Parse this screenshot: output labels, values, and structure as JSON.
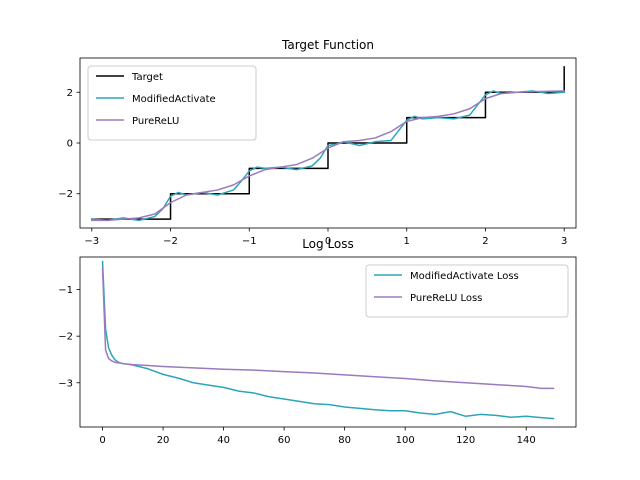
{
  "chart_data": [
    {
      "type": "line",
      "title": "Target Function",
      "xlabel": "",
      "ylabel": "",
      "xlim": [
        -3.15,
        3.15
      ],
      "ylim": [
        -3.35,
        3.35
      ],
      "xticks": [
        -3,
        -2,
        -1,
        0,
        1,
        2,
        3
      ],
      "yticks": [
        -2,
        0,
        2
      ],
      "grid": false,
      "legend": "top-left",
      "series": [
        {
          "name": "Target",
          "color": "#000000",
          "x": [
            -3,
            -2,
            -2,
            -1,
            -1,
            0,
            0,
            1,
            1,
            2,
            2,
            3,
            3
          ],
          "y": [
            -3,
            -3,
            -2,
            -2,
            -1,
            -1,
            0,
            0,
            1,
            1,
            2,
            2,
            3
          ]
        },
        {
          "name": "ModifiedActivate",
          "color": "#2ca5b8",
          "x": [
            -3.0,
            -2.8,
            -2.6,
            -2.4,
            -2.2,
            -2.1,
            -2.0,
            -1.9,
            -1.8,
            -1.6,
            -1.4,
            -1.2,
            -1.1,
            -1.0,
            -0.9,
            -0.8,
            -0.6,
            -0.4,
            -0.2,
            -0.1,
            0.0,
            0.1,
            0.2,
            0.4,
            0.6,
            0.8,
            0.9,
            1.0,
            1.1,
            1.2,
            1.4,
            1.6,
            1.8,
            1.9,
            2.0,
            2.1,
            2.2,
            2.4,
            2.6,
            2.8,
            3.0
          ],
          "y": [
            -3.0,
            -3.05,
            -2.95,
            -3.05,
            -2.9,
            -2.6,
            -2.1,
            -1.95,
            -2.05,
            -1.95,
            -2.05,
            -1.85,
            -1.5,
            -1.1,
            -0.95,
            -1.0,
            -0.95,
            -1.05,
            -0.9,
            -0.6,
            -0.1,
            -0.05,
            0.05,
            -0.1,
            0.05,
            0.1,
            0.5,
            0.9,
            1.05,
            0.95,
            1.0,
            0.95,
            1.1,
            1.5,
            1.9,
            2.05,
            1.95,
            2.0,
            2.05,
            1.95,
            2.0
          ]
        },
        {
          "name": "PureReLU",
          "color": "#9a7bbf",
          "x": [
            -3.0,
            -2.8,
            -2.6,
            -2.4,
            -2.2,
            -2.0,
            -1.8,
            -1.6,
            -1.4,
            -1.2,
            -1.0,
            -0.8,
            -0.6,
            -0.4,
            -0.2,
            0.0,
            0.2,
            0.4,
            0.6,
            0.8,
            1.0,
            1.2,
            1.4,
            1.6,
            1.8,
            2.0,
            2.2,
            2.4,
            2.6,
            2.8,
            3.0
          ],
          "y": [
            -3.05,
            -3.05,
            -3.0,
            -2.95,
            -2.8,
            -2.35,
            -2.05,
            -1.95,
            -1.85,
            -1.65,
            -1.3,
            -1.05,
            -0.95,
            -0.85,
            -0.6,
            -0.2,
            0.05,
            0.1,
            0.2,
            0.45,
            0.85,
            1.0,
            1.05,
            1.15,
            1.35,
            1.75,
            1.95,
            2.0,
            2.02,
            2.04,
            2.05
          ]
        }
      ]
    },
    {
      "type": "line",
      "title": "Log Loss",
      "xlabel": "",
      "ylabel": "",
      "xlim": [
        -7.45,
        156.45
      ],
      "ylim": [
        -3.95,
        -0.3
      ],
      "xticks": [
        0,
        20,
        40,
        60,
        80,
        100,
        120,
        140
      ],
      "yticks": [
        -3,
        -2,
        -1
      ],
      "grid": false,
      "legend": "top-right",
      "series": [
        {
          "name": "ModifiedActivate Loss",
          "color": "#2ca5b8",
          "x": [
            0,
            1,
            2,
            3,
            4,
            5,
            6,
            8,
            10,
            15,
            20,
            25,
            30,
            35,
            40,
            45,
            50,
            55,
            60,
            65,
            70,
            75,
            80,
            85,
            90,
            95,
            100,
            105,
            110,
            115,
            120,
            125,
            130,
            135,
            140,
            145,
            149
          ],
          "y": [
            -0.4,
            -1.85,
            -2.25,
            -2.4,
            -2.5,
            -2.55,
            -2.58,
            -2.6,
            -2.62,
            -2.7,
            -2.82,
            -2.9,
            -3.0,
            -3.05,
            -3.1,
            -3.18,
            -3.22,
            -3.3,
            -3.35,
            -3.4,
            -3.45,
            -3.47,
            -3.52,
            -3.55,
            -3.58,
            -3.6,
            -3.6,
            -3.65,
            -3.68,
            -3.62,
            -3.72,
            -3.68,
            -3.7,
            -3.74,
            -3.72,
            -3.75,
            -3.77
          ]
        },
        {
          "name": "PureReLU Loss",
          "color": "#9a7bbf",
          "x": [
            0,
            1,
            2,
            3,
            4,
            5,
            6,
            8,
            10,
            15,
            20,
            30,
            40,
            50,
            60,
            70,
            80,
            90,
            100,
            110,
            120,
            130,
            140,
            145,
            149
          ],
          "y": [
            -0.55,
            -2.3,
            -2.48,
            -2.53,
            -2.56,
            -2.57,
            -2.58,
            -2.6,
            -2.61,
            -2.63,
            -2.65,
            -2.68,
            -2.71,
            -2.73,
            -2.76,
            -2.79,
            -2.83,
            -2.87,
            -2.91,
            -2.96,
            -3.0,
            -3.04,
            -3.08,
            -3.12,
            -3.12
          ]
        }
      ]
    }
  ]
}
